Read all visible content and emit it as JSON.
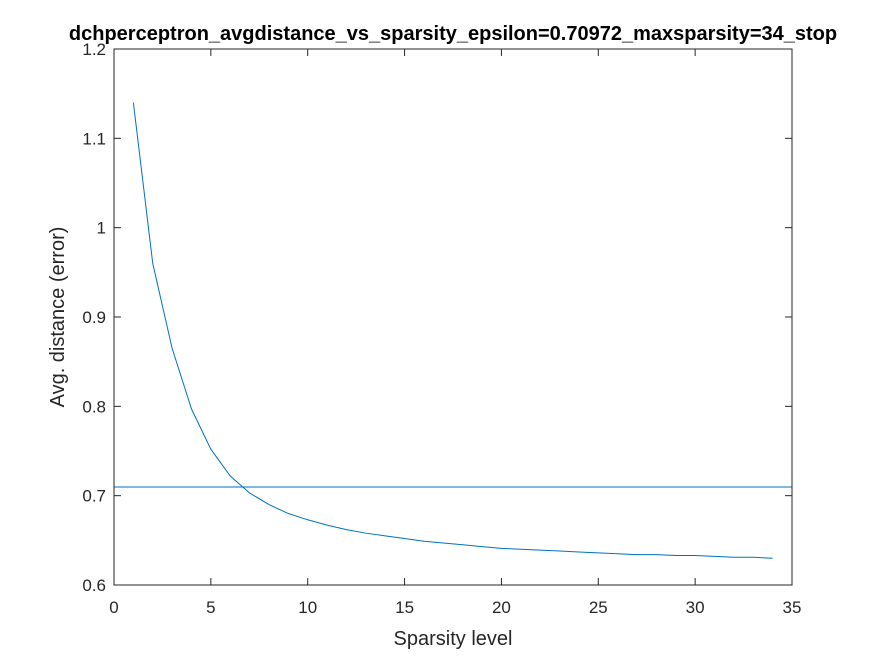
{
  "chart_data": {
    "type": "line",
    "title": "dchperceptron_avgdistance_vs_sparsity_epsilon=0.70972_maxsparsity=34_stop",
    "xlabel": "Sparsity level",
    "ylabel": "Avg. distance (error)",
    "xlim": [
      0,
      35
    ],
    "ylim": [
      0.6,
      1.2
    ],
    "xticks": [
      0,
      5,
      10,
      15,
      20,
      25,
      30,
      35
    ],
    "yticks": [
      0.6,
      0.7,
      0.8,
      0.9,
      1,
      1.1,
      1.2
    ],
    "xtick_labels": [
      "0",
      "5",
      "10",
      "15",
      "20",
      "25",
      "30",
      "35"
    ],
    "ytick_labels": [
      "0.6",
      "0.7",
      "0.8",
      "0.9",
      "1",
      "1.1",
      "1.2"
    ],
    "grid": false,
    "line_color": "#0072BD",
    "series": [
      {
        "x": [
          1,
          2,
          3,
          4,
          5,
          6,
          7,
          8,
          9,
          10,
          11,
          12,
          13,
          14,
          15,
          16,
          17,
          18,
          19,
          20,
          21,
          22,
          23,
          24,
          25,
          26,
          27,
          28,
          29,
          30,
          31,
          32,
          33,
          34
        ],
        "values": [
          1.14,
          0.96,
          0.865,
          0.797,
          0.752,
          0.722,
          0.703,
          0.69,
          0.68,
          0.673,
          0.667,
          0.662,
          0.658,
          0.655,
          0.652,
          0.649,
          0.647,
          0.645,
          0.643,
          0.641,
          0.64,
          0.639,
          0.638,
          0.637,
          0.636,
          0.635,
          0.634,
          0.634,
          0.633,
          0.633,
          0.632,
          0.631,
          0.631,
          0.63
        ]
      }
    ],
    "reference_line": {
      "y": 0.70972
    }
  }
}
